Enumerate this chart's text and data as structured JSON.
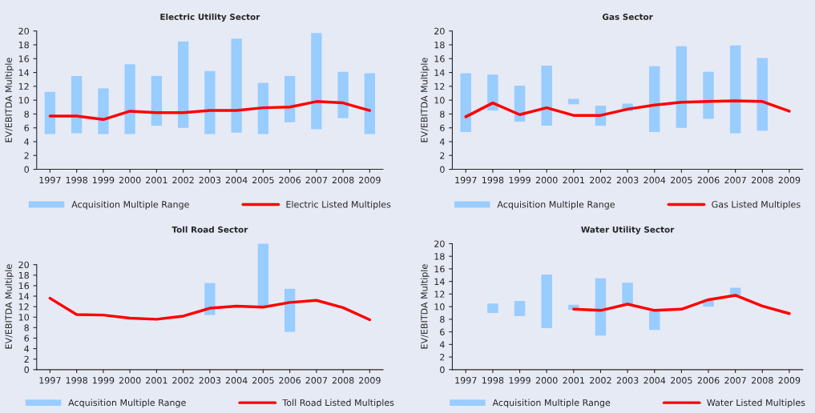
{
  "chart_data": [
    {
      "type": "bar",
      "title": "Electric Utility Sector",
      "ylabel": "EV/EBITDA Multiple",
      "categories": [
        "1997",
        "1998",
        "1999",
        "2000",
        "2001",
        "2002",
        "2003",
        "2004",
        "2005",
        "2006",
        "2007",
        "2008",
        "2009"
      ],
      "ylim": [
        0,
        20
      ],
      "yticks": [
        0,
        2,
        4,
        6,
        8,
        10,
        12,
        14,
        16,
        18,
        20
      ],
      "legend": "bottom",
      "grid": false,
      "series": [
        {
          "name": "Acquisition Multiple Range",
          "color": "#99ccff",
          "base": [
            5.1,
            5.2,
            5.1,
            5.1,
            6.3,
            6.0,
            5.1,
            5.3,
            5.1,
            6.8,
            5.8,
            7.4,
            5.1
          ],
          "values": [
            6.1,
            8.3,
            6.6,
            10.1,
            7.2,
            12.5,
            9.1,
            13.6,
            7.4,
            6.7,
            13.9,
            6.7,
            8.8
          ]
        },
        {
          "name": "Electric Listed Multiples",
          "type": "line",
          "color": "#ff0000",
          "values": [
            7.7,
            7.7,
            7.2,
            8.4,
            8.2,
            8.2,
            8.5,
            8.5,
            8.9,
            9.0,
            9.8,
            9.6,
            8.5
          ]
        }
      ]
    },
    {
      "type": "bar",
      "title": "Gas Sector",
      "ylabel": "EV/EBITDA Multiple",
      "categories": [
        "1997",
        "1998",
        "1999",
        "2000",
        "2001",
        "2002",
        "2003",
        "2004",
        "2005",
        "2006",
        "2007",
        "2008",
        "2009"
      ],
      "ylim": [
        0,
        20
      ],
      "yticks": [
        0,
        2,
        4,
        6,
        8,
        10,
        12,
        14,
        16,
        18,
        20
      ],
      "legend": "bottom",
      "grid": false,
      "series": [
        {
          "name": "Acquisition Multiple Range",
          "color": "#99ccff",
          "base": [
            5.4,
            8.5,
            6.9,
            6.3,
            9.4,
            6.3,
            8.4,
            5.4,
            6.0,
            7.3,
            5.2,
            5.6,
            null
          ],
          "values": [
            8.5,
            5.2,
            5.2,
            8.7,
            0.8,
            2.9,
            1.1,
            9.5,
            11.8,
            6.8,
            12.7,
            10.5,
            null
          ]
        },
        {
          "name": "Gas Listed Multiples",
          "type": "line",
          "color": "#ff0000",
          "values": [
            7.6,
            9.6,
            7.9,
            8.9,
            7.8,
            7.8,
            8.7,
            9.3,
            9.7,
            9.8,
            9.9,
            9.8,
            8.4
          ]
        }
      ]
    },
    {
      "type": "bar",
      "title": "Toll Road Sector",
      "ylabel": "EV/EBITDA Multiple",
      "categories": [
        "1997",
        "1998",
        "1999",
        "2000",
        "2001",
        "2002",
        "2003",
        "2004",
        "2005",
        "2006",
        "2007",
        "2008",
        "2009"
      ],
      "ylim": [
        0,
        24
      ],
      "yticks": [
        0,
        2,
        4,
        6,
        8,
        10,
        12,
        14,
        16,
        18,
        20
      ],
      "legend": "bottom",
      "grid": false,
      "series": [
        {
          "name": "Acquisition Multiple Range",
          "color": "#99ccff",
          "base": [
            null,
            null,
            null,
            null,
            null,
            null,
            10.4,
            null,
            11.9,
            7.2,
            null,
            null,
            null
          ],
          "values": [
            null,
            null,
            null,
            null,
            null,
            null,
            6.1,
            null,
            12.1,
            8.2,
            null,
            null,
            null
          ]
        },
        {
          "name": "Toll Road Listed Multiples",
          "type": "line",
          "color": "#ff0000",
          "values": [
            13.6,
            10.5,
            10.4,
            9.8,
            9.6,
            10.2,
            11.7,
            12.1,
            11.9,
            12.8,
            13.2,
            11.8,
            9.5
          ]
        }
      ]
    },
    {
      "type": "bar",
      "title": "Water Utility Sector",
      "ylabel": "EV/EBITDA Multiple",
      "categories": [
        "1997",
        "1998",
        "1999",
        "2000",
        "2001",
        "2002",
        "2003",
        "2004",
        "2005",
        "2006",
        "2007",
        "2008",
        "2009"
      ],
      "ylim": [
        0,
        20
      ],
      "yticks": [
        0,
        2,
        4,
        6,
        8,
        10,
        12,
        14,
        16,
        18,
        20
      ],
      "legend": "bottom",
      "grid": false,
      "series": [
        {
          "name": "Acquisition Multiple Range",
          "color": "#99ccff",
          "base": [
            null,
            9.0,
            8.5,
            6.6,
            9.5,
            5.4,
            10.3,
            6.3,
            null,
            10.0,
            11.8,
            null,
            null
          ],
          "values": [
            null,
            1.5,
            2.4,
            8.5,
            0.8,
            9.1,
            3.5,
            3.0,
            null,
            1.1,
            1.2,
            null,
            null
          ]
        },
        {
          "name": "Water Listed Multiples",
          "type": "line",
          "color": "#ff0000",
          "values": [
            null,
            null,
            null,
            null,
            9.6,
            9.4,
            10.4,
            9.4,
            9.6,
            11.1,
            11.8,
            10.1,
            8.9
          ]
        }
      ]
    }
  ]
}
